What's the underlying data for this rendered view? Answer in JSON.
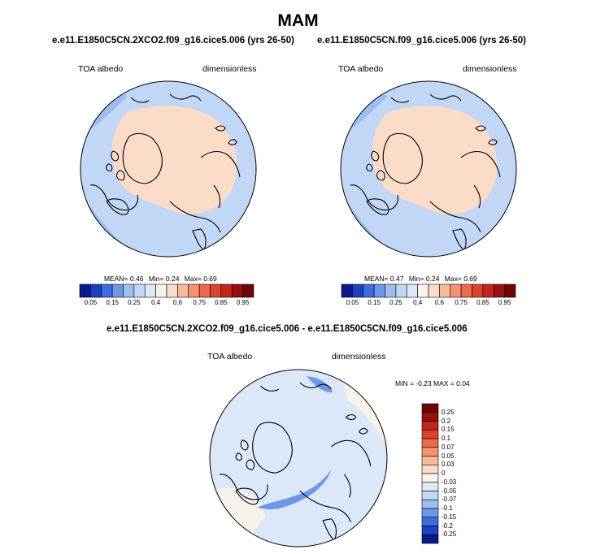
{
  "figure": {
    "title": "MAM"
  },
  "panels": [
    {
      "subtitle": "e.e11.E1850C5CN.2XCO2.f09_g16.cice5.006 (yrs 26-50)",
      "left_label": "TOA albedo",
      "right_label": "dimensionless",
      "stats": {
        "mean_label": "MEAN=",
        "mean": "0.46",
        "min_label": "Min=",
        "min": "0.24",
        "max_label": "Max=",
        "max": "0.69"
      }
    },
    {
      "subtitle": "e.e11.E1850C5CN.f09_g16.cice5.006 (yrs 26-50)",
      "left_label": "TOA albedo",
      "right_label": "dimensionless",
      "stats": {
        "mean_label": "MEAN=",
        "mean": "0.47",
        "min_label": "Min=",
        "min": "0.24",
        "max_label": "Max=",
        "max": "0.69"
      }
    },
    {
      "subtitle": "e.e11.E1850C5CN.2XCO2.f09_g16.cice5.006 - e.e11.E1850C5CN.f09_g16.cice5.006",
      "left_label": "TOA albedo",
      "right_label": "dimensionless",
      "stats_line": "MIN =  -0.23 MAX =    0.04"
    }
  ],
  "colorbar_horizontal": {
    "ticks": [
      "0.05",
      "0.15",
      "0.25",
      "0.4",
      "0.6",
      "0.75",
      "0.85",
      "0.95"
    ],
    "colors": [
      "#0a1a8c",
      "#1f3fbf",
      "#3b6fe0",
      "#6d98ea",
      "#9dbcf0",
      "#c2d6f5",
      "#dce8f7",
      "#f7f2ea",
      "#fbdcc8",
      "#f8b99a",
      "#f39271",
      "#ea6a4b",
      "#dc4430",
      "#c3261d",
      "#9a1010",
      "#6e0505"
    ]
  },
  "colorbar_vertical": {
    "ticks": [
      "0.25",
      "0.2",
      "0.15",
      "0.1",
      "0.07",
      "0.05",
      "0.03",
      "0",
      "-0.03",
      "-0.05",
      "-0.07",
      "-0.1",
      "-0.15",
      "-0.2",
      "-0.25"
    ],
    "colors": [
      "#6e0505",
      "#9a1010",
      "#c3261d",
      "#dc4430",
      "#ea6a4b",
      "#f39271",
      "#f8b99a",
      "#fbdcc8",
      "#f7f2ea",
      "#dce8f7",
      "#c2d6f5",
      "#9dbcf0",
      "#6d98ea",
      "#3b6fe0",
      "#1f3fbf",
      "#0a1a8c"
    ]
  },
  "map_colors": {
    "ocean_low": "#9dbcf0",
    "ocean_mid": "#c2d6f5",
    "ice_high": "#fbdcc8",
    "diff_bg": "#dce8f7",
    "diff_pos": "#f7f2ea",
    "diff_neg": "#6d98ea"
  }
}
